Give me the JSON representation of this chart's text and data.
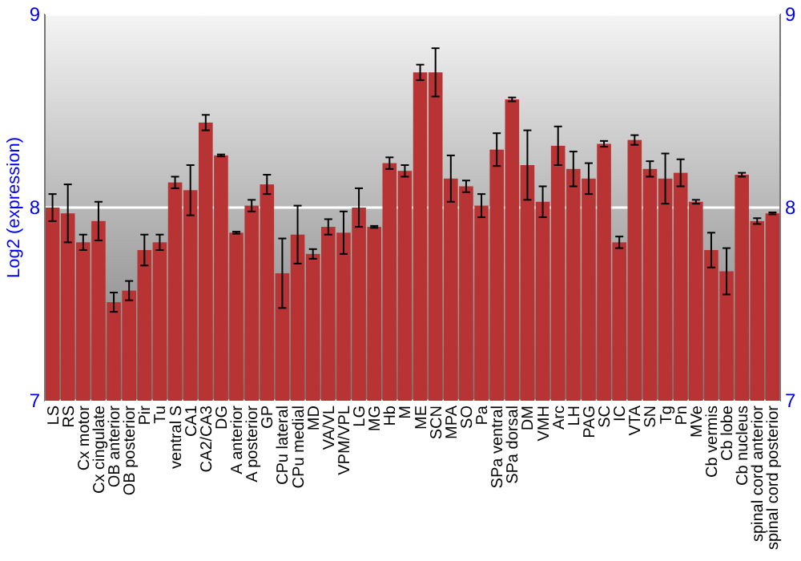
{
  "chart_data": {
    "type": "bar",
    "ylabel": "Log2 (expression)",
    "categories": [
      "LS",
      "RS",
      "Cx motor",
      "Cx cingulate",
      "OB anterior",
      "OB posterior",
      "Pir",
      "Tu",
      "ventral S",
      "CA1",
      "CA2/CA3",
      "DG",
      "A anterior",
      "A posterior",
      "GP",
      "CPu lateral",
      "CPu medial",
      "MD",
      "VA/VL",
      "VPM/VPL",
      "LG",
      "MG",
      "Hb",
      "M",
      "ME",
      "SCN",
      "MPA",
      "SO",
      "Pa",
      "SPa ventral",
      "SPa dorsal",
      "DM",
      "VMH",
      "Arc",
      "LH",
      "PAG",
      "SC",
      "IC",
      "VTA",
      "SN",
      "Tg",
      "Pn",
      "MVe",
      "Cb vermis",
      "Cb lobe",
      "Cb nucleus",
      "spinal cord anterior",
      "spinal cord posterior"
    ],
    "values": [
      8.0,
      7.97,
      7.82,
      7.93,
      7.51,
      7.57,
      7.78,
      7.82,
      8.13,
      8.09,
      8.44,
      8.27,
      7.87,
      8.01,
      8.12,
      7.66,
      7.86,
      7.76,
      7.9,
      7.87,
      8.0,
      7.9,
      8.23,
      8.19,
      8.7,
      8.7,
      8.15,
      8.11,
      8.01,
      8.3,
      8.56,
      8.22,
      8.03,
      8.32,
      8.2,
      8.15,
      8.33,
      7.82,
      8.35,
      8.2,
      8.15,
      8.18,
      8.03,
      7.78,
      7.67,
      8.17,
      7.93,
      7.97
    ],
    "errors": [
      0.07,
      0.15,
      0.04,
      0.1,
      0.05,
      0.05,
      0.08,
      0.04,
      0.03,
      0.13,
      0.04,
      0.005,
      0.005,
      0.03,
      0.05,
      0.18,
      0.15,
      0.025,
      0.04,
      0.11,
      0.1,
      0.005,
      0.03,
      0.03,
      0.04,
      0.125,
      0.12,
      0.03,
      0.06,
      0.085,
      0.01,
      0.18,
      0.08,
      0.1,
      0.09,
      0.08,
      0.015,
      0.03,
      0.025,
      0.04,
      0.13,
      0.07,
      0.01,
      0.09,
      0.12,
      0.01,
      0.015,
      0.005
    ],
    "color": "#b83333",
    "ylim": [
      7,
      9
    ],
    "yticks": [
      7,
      8,
      9
    ],
    "y2lim": [
      7,
      9
    ],
    "y2ticks": [
      7,
      8,
      9
    ],
    "grid": "y"
  }
}
